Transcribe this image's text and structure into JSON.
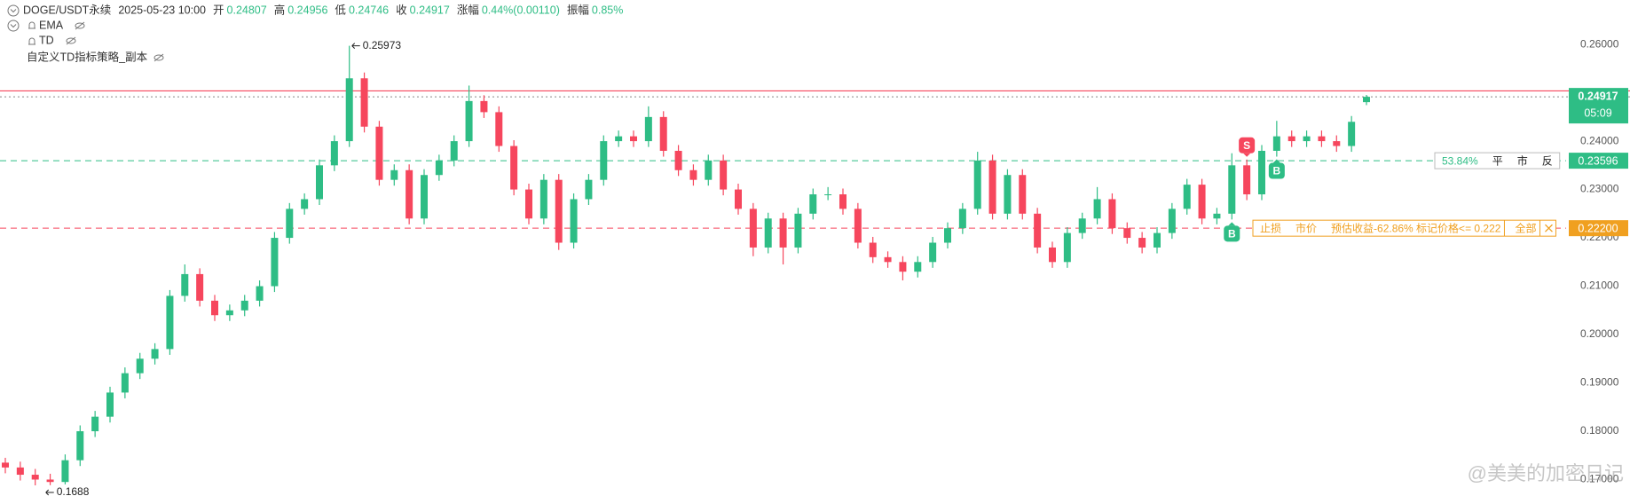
{
  "chart_data": {
    "type": "candlestick",
    "symbol": "DOGE/USDT永续",
    "time": "2025-05-23 10:00",
    "ohlc_labels": [
      "开",
      "高",
      "低",
      "收"
    ],
    "change_label": "涨幅",
    "change": "0.44%(0.00110)",
    "amplitude_label": "振幅",
    "amplitude": "0.85%",
    "indicators": [
      "EMA",
      "TD",
      "自定义TD指标策略_副本"
    ],
    "up_color": "#2ebd85",
    "down_color": "#f6465d",
    "ylim": [
      0.1666,
      0.2692
    ],
    "yticks": [
      {
        "value": 0.26,
        "label": "0.26000"
      },
      {
        "value": 0.24,
        "label": "0.24000"
      },
      {
        "value": 0.23,
        "label": "0.23000"
      },
      {
        "value": 0.22,
        "label": "0.22000"
      },
      {
        "value": 0.21,
        "label": "0.21000"
      },
      {
        "value": 0.2,
        "label": "0.20000"
      },
      {
        "value": 0.19,
        "label": "0.19000"
      },
      {
        "value": 0.18,
        "label": "0.18000"
      },
      {
        "value": 0.17,
        "label": "0.17000"
      }
    ],
    "ohlc": [
      [
        0.1735,
        0.1745,
        0.1713,
        0.1725
      ],
      [
        0.1725,
        0.1737,
        0.1698,
        0.171
      ],
      [
        0.171,
        0.1722,
        0.1688,
        0.17
      ],
      [
        0.17,
        0.1712,
        0.16884,
        0.1695
      ],
      [
        0.1695,
        0.1752,
        0.169,
        0.174
      ],
      [
        0.174,
        0.1812,
        0.1728,
        0.18
      ],
      [
        0.18,
        0.1842,
        0.1788,
        0.183
      ],
      [
        0.183,
        0.1892,
        0.1818,
        0.188
      ],
      [
        0.188,
        0.1932,
        0.1868,
        0.192
      ],
      [
        0.192,
        0.1962,
        0.1908,
        0.195
      ],
      [
        0.195,
        0.1982,
        0.1938,
        0.197
      ],
      [
        0.197,
        0.2092,
        0.1958,
        0.208
      ],
      [
        0.208,
        0.2145,
        0.2068,
        0.2125
      ],
      [
        0.2125,
        0.2137,
        0.2058,
        0.207
      ],
      [
        0.207,
        0.2082,
        0.2028,
        0.204
      ],
      [
        0.204,
        0.2062,
        0.2028,
        0.205
      ],
      [
        0.205,
        0.2082,
        0.2038,
        0.207
      ],
      [
        0.207,
        0.2112,
        0.2058,
        0.21
      ],
      [
        0.21,
        0.2212,
        0.2088,
        0.22
      ],
      [
        0.22,
        0.2272,
        0.2188,
        0.226
      ],
      [
        0.226,
        0.2292,
        0.2248,
        0.228
      ],
      [
        0.228,
        0.2362,
        0.2268,
        0.235
      ],
      [
        0.235,
        0.2412,
        0.2338,
        0.24
      ],
      [
        0.24,
        0.25973,
        0.2388,
        0.253
      ],
      [
        0.253,
        0.2542,
        0.2418,
        0.243
      ],
      [
        0.243,
        0.2442,
        0.2308,
        0.232
      ],
      [
        0.232,
        0.2352,
        0.2308,
        0.234
      ],
      [
        0.234,
        0.2352,
        0.2228,
        0.224
      ],
      [
        0.224,
        0.2342,
        0.2228,
        0.233
      ],
      [
        0.233,
        0.2372,
        0.2318,
        0.236
      ],
      [
        0.236,
        0.2412,
        0.2348,
        0.24
      ],
      [
        0.24,
        0.2515,
        0.2388,
        0.2483
      ],
      [
        0.2483,
        0.2495,
        0.2448,
        0.246
      ],
      [
        0.246,
        0.2472,
        0.2378,
        0.239
      ],
      [
        0.239,
        0.2402,
        0.2288,
        0.23
      ],
      [
        0.23,
        0.2312,
        0.2228,
        0.224
      ],
      [
        0.224,
        0.2332,
        0.2228,
        0.232
      ],
      [
        0.232,
        0.2332,
        0.2175,
        0.219
      ],
      [
        0.219,
        0.2292,
        0.2178,
        0.228
      ],
      [
        0.228,
        0.2332,
        0.2268,
        0.232
      ],
      [
        0.232,
        0.2412,
        0.2308,
        0.24
      ],
      [
        0.24,
        0.2422,
        0.2388,
        0.241
      ],
      [
        0.241,
        0.2422,
        0.2388,
        0.24
      ],
      [
        0.24,
        0.2472,
        0.2388,
        0.245
      ],
      [
        0.245,
        0.2462,
        0.2368,
        0.238
      ],
      [
        0.238,
        0.2392,
        0.2328,
        0.234
      ],
      [
        0.234,
        0.2352,
        0.2308,
        0.232
      ],
      [
        0.232,
        0.2372,
        0.2308,
        0.236
      ],
      [
        0.236,
        0.2372,
        0.2288,
        0.23
      ],
      [
        0.23,
        0.2312,
        0.2248,
        0.226
      ],
      [
        0.226,
        0.2272,
        0.2162,
        0.218
      ],
      [
        0.218,
        0.2252,
        0.2168,
        0.224
      ],
      [
        0.224,
        0.2252,
        0.2145,
        0.218
      ],
      [
        0.218,
        0.2262,
        0.2168,
        0.225
      ],
      [
        0.225,
        0.2302,
        0.2238,
        0.229
      ],
      [
        0.229,
        0.2305,
        0.2278,
        0.229
      ],
      [
        0.229,
        0.2302,
        0.2248,
        0.226
      ],
      [
        0.226,
        0.2272,
        0.2178,
        0.219
      ],
      [
        0.219,
        0.2202,
        0.2148,
        0.216
      ],
      [
        0.216,
        0.2172,
        0.2138,
        0.215
      ],
      [
        0.215,
        0.2162,
        0.2112,
        0.213
      ],
      [
        0.213,
        0.2162,
        0.2118,
        0.215
      ],
      [
        0.215,
        0.2202,
        0.2138,
        0.219
      ],
      [
        0.219,
        0.2232,
        0.2178,
        0.222
      ],
      [
        0.222,
        0.2272,
        0.2208,
        0.226
      ],
      [
        0.226,
        0.2378,
        0.2248,
        0.236
      ],
      [
        0.236,
        0.2372,
        0.2238,
        0.225
      ],
      [
        0.225,
        0.2342,
        0.2238,
        0.233
      ],
      [
        0.233,
        0.2342,
        0.2238,
        0.225
      ],
      [
        0.225,
        0.2262,
        0.2168,
        0.218
      ],
      [
        0.218,
        0.2192,
        0.2138,
        0.215
      ],
      [
        0.215,
        0.2222,
        0.2138,
        0.221
      ],
      [
        0.221,
        0.2252,
        0.2198,
        0.224
      ],
      [
        0.224,
        0.2305,
        0.2228,
        0.228
      ],
      [
        0.228,
        0.2292,
        0.2208,
        0.222
      ],
      [
        0.222,
        0.2232,
        0.2188,
        0.22
      ],
      [
        0.22,
        0.2212,
        0.2168,
        0.218
      ],
      [
        0.218,
        0.2222,
        0.2168,
        0.221
      ],
      [
        0.221,
        0.2272,
        0.2198,
        0.226
      ],
      [
        0.226,
        0.2322,
        0.2248,
        0.231
      ],
      [
        0.231,
        0.2322,
        0.2228,
        0.224
      ],
      [
        0.224,
        0.2262,
        0.2228,
        0.225
      ],
      [
        0.225,
        0.2375,
        0.2238,
        0.235
      ],
      [
        0.235,
        0.2362,
        0.2278,
        0.229
      ],
      [
        0.229,
        0.2392,
        0.2278,
        0.238
      ],
      [
        0.238,
        0.2442,
        0.2368,
        0.241
      ],
      [
        0.241,
        0.2422,
        0.2388,
        0.24
      ],
      [
        0.24,
        0.2422,
        0.2388,
        0.241
      ],
      [
        0.241,
        0.2422,
        0.2388,
        0.24
      ],
      [
        0.24,
        0.2412,
        0.2378,
        0.239
      ],
      [
        0.239,
        0.2452,
        0.2378,
        0.244
      ],
      [
        0.24807,
        0.24956,
        0.24746,
        0.24917
      ]
    ],
    "countdown": "05:09",
    "alert_line": {
      "value": 0.2504,
      "color": "#f6465d"
    },
    "signals": [
      {
        "text": "S",
        "candle": 83,
        "color": "#f6465d"
      },
      {
        "text": "B",
        "candle": 85,
        "color": "#2ebd85"
      },
      {
        "text": "B",
        "candle": 82,
        "color": "#2ebd85"
      }
    ],
    "order_lines": [
      {
        "price": 0.23596,
        "line_color": "#2ebd85",
        "label_color": "#2ebd85",
        "texts": [
          "53.84%",
          "平",
          "市",
          "反"
        ]
      },
      {
        "price": {
          "value": 0.222,
          "label": "0.22200"
        },
        "line_color": "#f6465d",
        "label_color": "#f0a020",
        "texts": [
          "止损",
          "市价",
          "预估收益-62.86% 标记价格<= 0.222",
          "全部"
        ]
      }
    ],
    "watermark": "@美美的加密日记"
  }
}
